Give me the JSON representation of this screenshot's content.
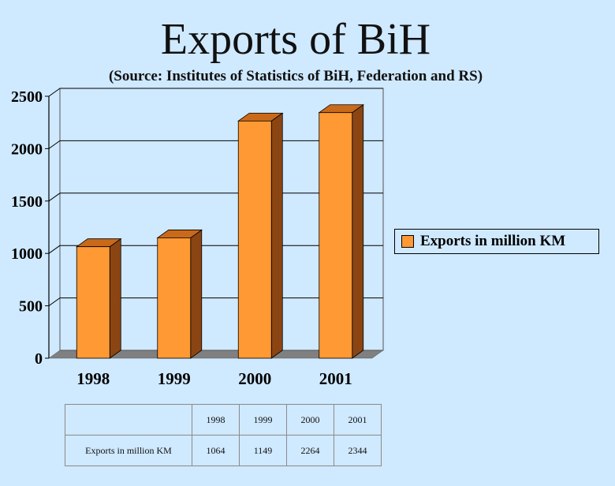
{
  "chart_data": {
    "type": "bar",
    "title": "Exports of BiH",
    "subtitle": "(Source: Institutes of Statistics of BiH, Federation and RS)",
    "categories": [
      "1998",
      "1999",
      "2000",
      "2001"
    ],
    "series": [
      {
        "name": "Exports in million KM",
        "values": [
          1064,
          1149,
          2264,
          2344
        ]
      }
    ],
    "ylim": [
      0,
      2500
    ],
    "yticks": [
      "0",
      "500",
      "1000",
      "1500",
      "2000",
      "2500"
    ],
    "grid": true,
    "legend_position": "right",
    "three_d": true
  },
  "colors": {
    "background": "#cfe9ff",
    "bar_front": "#ff9933",
    "bar_side": "#8b4513",
    "bar_top": "#c86a1a",
    "floor": "#808080"
  },
  "table": {
    "row_label": "Exports in million KM",
    "years": [
      "1998",
      "1999",
      "2000",
      "2001"
    ],
    "values": [
      "1064",
      "1149",
      "2264",
      "2344"
    ]
  }
}
